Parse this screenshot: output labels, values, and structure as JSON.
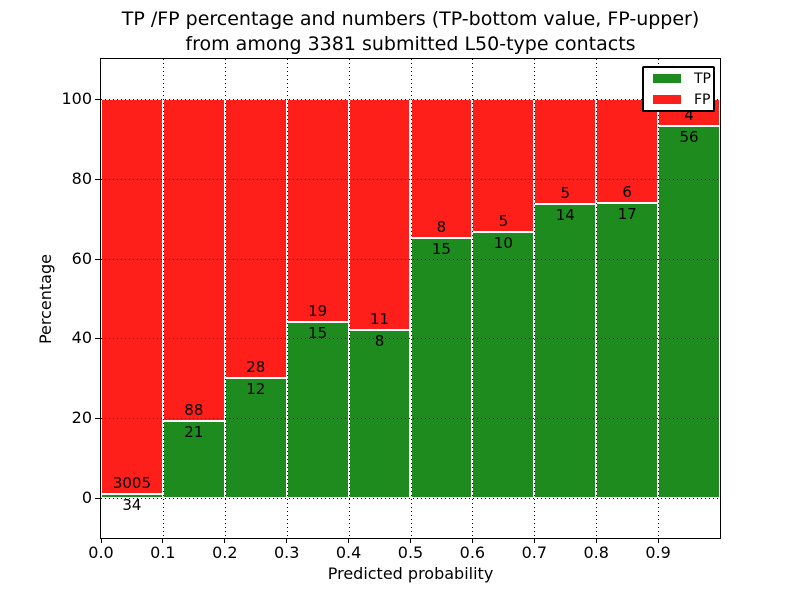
{
  "figure": {
    "title_line1": "TP /FP percentage and numbers (TP-bottom value, FP-upper)",
    "title_line2": "from among 3381 submitted L50-type contacts"
  },
  "axes": {
    "xlabel": "Predicted probability",
    "ylabel": "Percentage",
    "x_tick_labels": [
      "0.0",
      "0.1",
      "0.2",
      "0.3",
      "0.4",
      "0.5",
      "0.6",
      "0.7",
      "0.8",
      "0.9"
    ],
    "y_tick_labels": [
      "0",
      "20",
      "40",
      "60",
      "80",
      "100"
    ],
    "xlim": [
      0.0,
      1.0
    ],
    "ylim": [
      -10,
      110
    ],
    "grid_style": "dotted"
  },
  "legend": {
    "position": "upper-right",
    "items": [
      {
        "label": "TP",
        "color": "#1e8b1e"
      },
      {
        "label": "FP",
        "color": "#ff1f1a"
      }
    ]
  },
  "colors": {
    "tp": "#1e8b1e",
    "fp": "#ff1f1a",
    "bar_edge": "#ffffff",
    "grid": "#000000",
    "background": "#ffffff"
  },
  "chart_data": {
    "type": "bar",
    "stacked": true,
    "normalized": "each bar totals 100%",
    "title": "TP /FP percentage and numbers (TP-bottom value, FP-upper) from among 3381 submitted L50-type contacts",
    "xlabel": "Predicted probability",
    "ylabel": "Percentage",
    "total_contacts": 3381,
    "bin_width": 0.1,
    "x_bins": [
      0.0,
      0.1,
      0.2,
      0.3,
      0.4,
      0.5,
      0.6,
      0.7,
      0.8,
      0.9
    ],
    "series": [
      {
        "name": "TP",
        "counts": [
          34,
          21,
          12,
          15,
          8,
          15,
          10,
          14,
          17,
          56
        ]
      },
      {
        "name": "FP",
        "counts": [
          3005,
          88,
          28,
          19,
          11,
          8,
          5,
          5,
          6,
          4
        ]
      }
    ],
    "tp_percent_by_bin": [
      1.1,
      19.3,
      30.0,
      44.1,
      42.1,
      65.2,
      66.7,
      73.7,
      73.9,
      93.3
    ],
    "legend_entries": [
      "TP",
      "FP"
    ],
    "xlim": [
      0.0,
      1.0
    ],
    "ylim": [
      -10,
      110
    ],
    "grid": "dotted, drawn over bars"
  }
}
